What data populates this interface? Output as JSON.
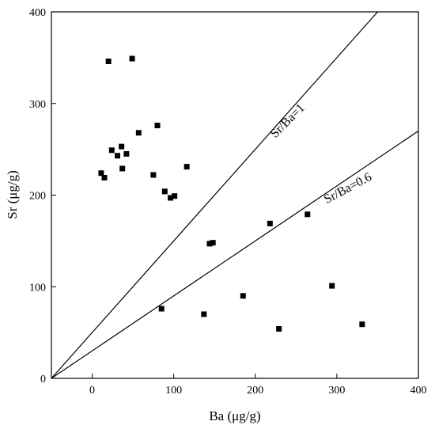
{
  "chart_data": {
    "type": "scatter",
    "xlabel": "Ba (μg/g)",
    "ylabel": "Sr (μg/g)",
    "xlim": [
      -50,
      400
    ],
    "ylim": [
      0,
      400
    ],
    "xticks": [
      0,
      100,
      200,
      300,
      400
    ],
    "yticks": [
      0,
      100,
      200,
      300,
      400
    ],
    "grid": false,
    "marker": "square",
    "marker_color": "#000000",
    "points": [
      {
        "x": 20,
        "y": 346
      },
      {
        "x": 49,
        "y": 349
      },
      {
        "x": 24,
        "y": 249
      },
      {
        "x": 36,
        "y": 253
      },
      {
        "x": 42,
        "y": 245
      },
      {
        "x": 31,
        "y": 243
      },
      {
        "x": 57,
        "y": 268
      },
      {
        "x": 80,
        "y": 276
      },
      {
        "x": 11,
        "y": 224
      },
      {
        "x": 15,
        "y": 219
      },
      {
        "x": 37,
        "y": 229
      },
      {
        "x": 75,
        "y": 222
      },
      {
        "x": 116,
        "y": 231
      },
      {
        "x": 89,
        "y": 204
      },
      {
        "x": 96,
        "y": 197
      },
      {
        "x": 101,
        "y": 199
      },
      {
        "x": 144,
        "y": 147
      },
      {
        "x": 148,
        "y": 148
      },
      {
        "x": 218,
        "y": 169
      },
      {
        "x": 264,
        "y": 179
      },
      {
        "x": 85,
        "y": 76
      },
      {
        "x": 137,
        "y": 70
      },
      {
        "x": 185,
        "y": 90
      },
      {
        "x": 229,
        "y": 54
      },
      {
        "x": 294,
        "y": 101
      },
      {
        "x": 331,
        "y": 59
      }
    ],
    "reference_lines": [
      {
        "label": "Sr/Ba=1",
        "slope": 1
      },
      {
        "label": "Sr/Ba=0.6",
        "slope": 0.6
      }
    ],
    "reference_origin": [
      -50,
      0
    ]
  }
}
